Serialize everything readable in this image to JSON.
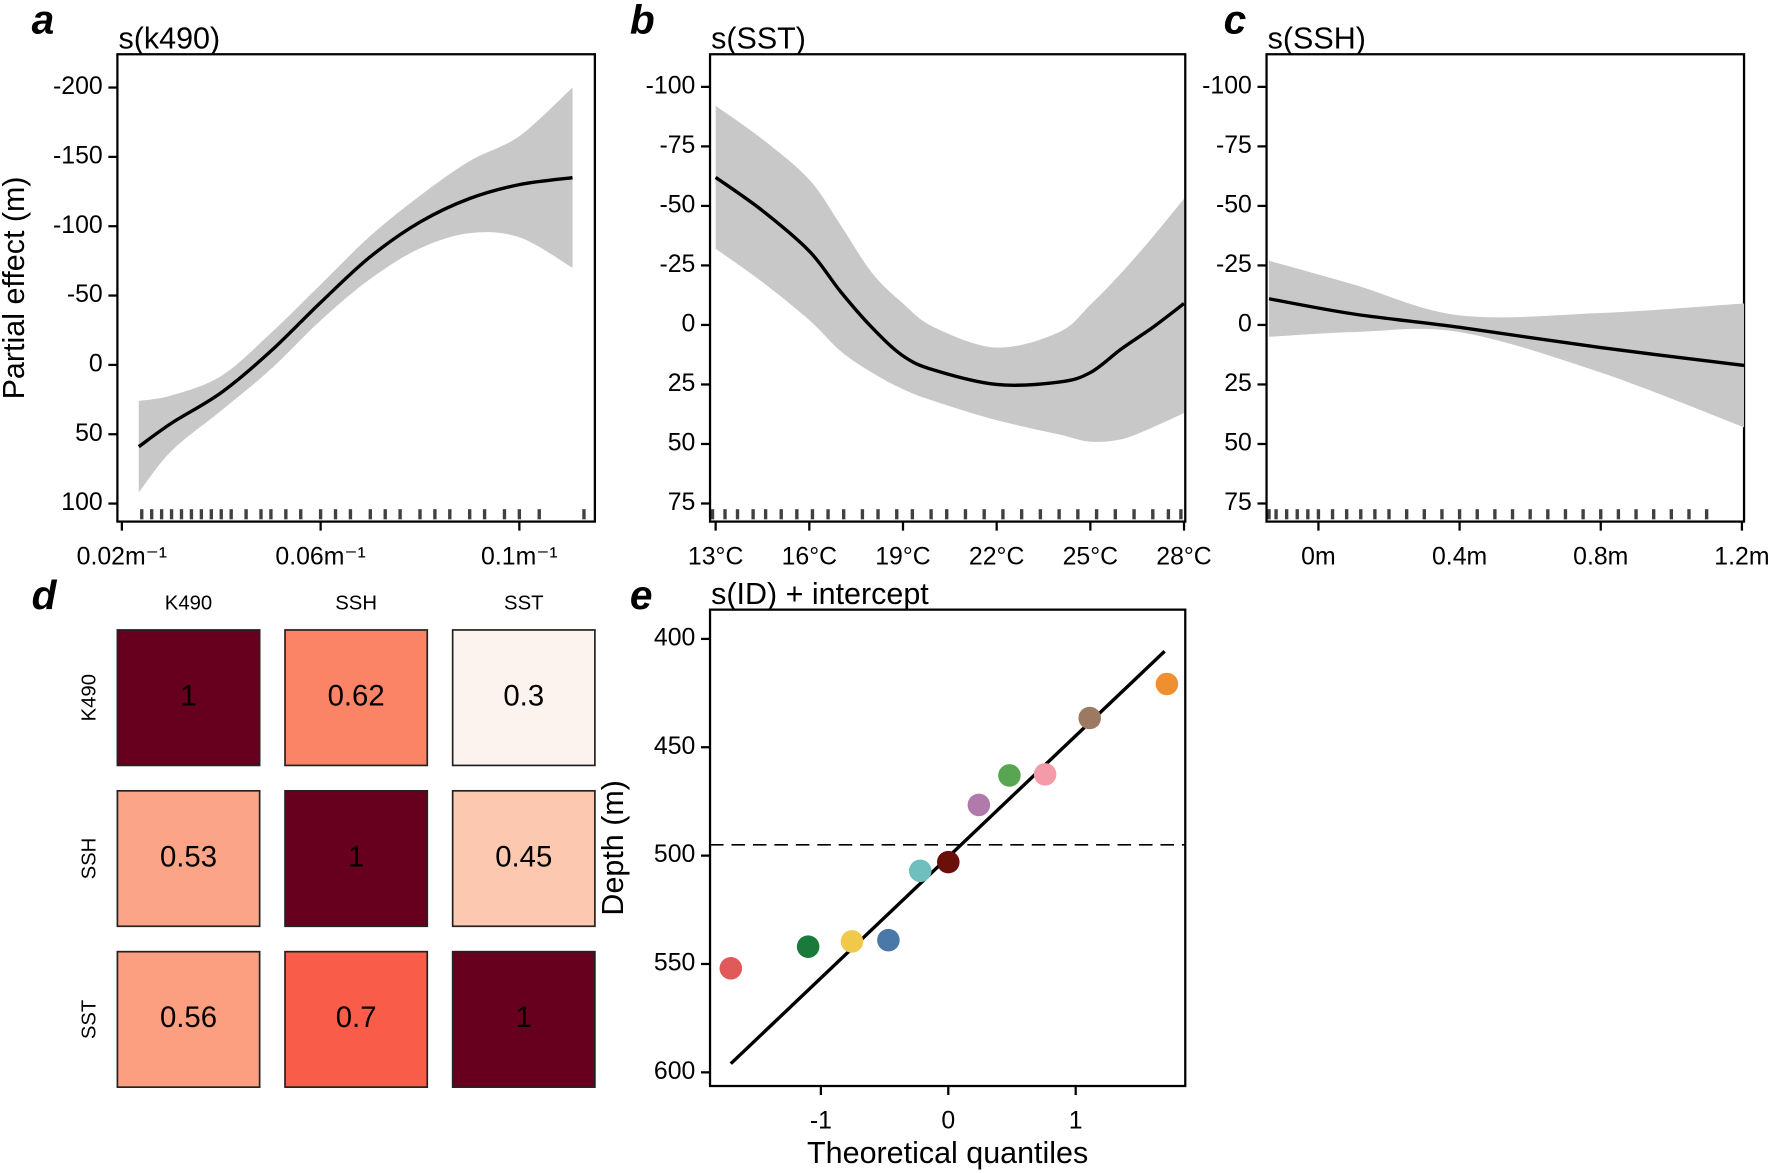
{
  "chart_data": [
    {
      "type": "line",
      "panel": "a",
      "title": "s(k490)",
      "ylabel": "Partial effect (m)",
      "x": [
        0.0234,
        0.03,
        0.04,
        0.05,
        0.06,
        0.07,
        0.08,
        0.09,
        0.1,
        0.1107
      ],
      "values": [
        59,
        42,
        20,
        -10,
        -45,
        -78,
        -103,
        -120,
        -130,
        -135
      ],
      "band_low": [
        26,
        22,
        8,
        -23,
        -58,
        -93,
        -122,
        -147,
        -165,
        -200
      ],
      "band_high": [
        92,
        62,
        33,
        3,
        -32,
        -62,
        -84,
        -95,
        -92,
        -70
      ],
      "rug": [
        0.024,
        0.026,
        0.028,
        0.03,
        0.032,
        0.034,
        0.036,
        0.038,
        0.04,
        0.042,
        0.045,
        0.048,
        0.05,
        0.053,
        0.056,
        0.06,
        0.063,
        0.066,
        0.07,
        0.073,
        0.076,
        0.08,
        0.083,
        0.086,
        0.09,
        0.093,
        0.097,
        0.1,
        0.104,
        0.113
      ],
      "color": "#000000",
      "band_color": "#c8c8c8",
      "xlim": [
        0.0191,
        0.1152
      ],
      "ylim": [
        113,
        -224
      ],
      "xticks": [
        {
          "value": 0.02,
          "label": "0.02m⁻¹"
        },
        {
          "value": 0.06,
          "label": "0.06m⁻¹"
        },
        {
          "value": 0.1,
          "label": "0.1m⁻¹"
        }
      ],
      "yticks": [
        -200,
        -150,
        -100,
        -50,
        0,
        50,
        100
      ]
    },
    {
      "type": "line",
      "panel": "b",
      "title": "s(SST)",
      "x": [
        13,
        14.5,
        16,
        17,
        18,
        19,
        20,
        22,
        24,
        25,
        26,
        27,
        28
      ],
      "values": [
        -62,
        -48,
        -31,
        -14,
        1,
        13,
        19,
        25,
        24,
        20,
        10,
        1,
        -9
      ],
      "band_low": [
        -92,
        -78,
        -61,
        -42,
        -22,
        -9,
        1,
        9.5,
        3,
        -8.5,
        -22,
        -37,
        -53
      ],
      "band_high": [
        -32,
        -18,
        -2,
        11,
        20,
        27,
        32,
        40,
        46,
        49,
        48,
        43,
        37
      ],
      "rug": [
        12.9,
        13.3,
        13.7,
        14.2,
        14.6,
        15.1,
        15.6,
        16.1,
        16.6,
        17.1,
        17.7,
        18.2,
        18.8,
        19.3,
        19.9,
        20.4,
        21,
        21.6,
        22.2,
        22.8,
        23.4,
        24,
        24.6,
        25.2,
        25.8,
        26.4,
        27,
        27.5,
        27.9
      ],
      "color": "#000000",
      "band_color": "#c8c8c8",
      "xlim": [
        12.82,
        28.04
      ],
      "ylim": [
        82.6,
        -113.7
      ],
      "xticks": [
        {
          "value": 13,
          "label": "13°C"
        },
        {
          "value": 16,
          "label": "16°C"
        },
        {
          "value": 19,
          "label": "19°C"
        },
        {
          "value": 22,
          "label": "22°C"
        },
        {
          "value": 25,
          "label": "25°C"
        },
        {
          "value": 28,
          "label": "28°C"
        }
      ],
      "yticks": [
        -100,
        -75,
        -50,
        -25,
        0,
        25,
        50,
        75
      ]
    },
    {
      "type": "line",
      "panel": "c",
      "title": "s(SSH)",
      "x": [
        -0.14,
        0.1,
        0.4,
        0.8,
        1.206
      ],
      "values": [
        -11,
        -4.6,
        1,
        9.5,
        17
      ],
      "band_low": [
        -27,
        -17,
        -4,
        -5,
        -9
      ],
      "band_high": [
        5,
        3,
        3,
        20,
        43
      ],
      "rug": [
        -0.14,
        -0.12,
        -0.09,
        -0.06,
        -0.03,
        0,
        0.04,
        0.08,
        0.12,
        0.16,
        0.2,
        0.25,
        0.3,
        0.35,
        0.4,
        0.45,
        0.5,
        0.55,
        0.6,
        0.65,
        0.7,
        0.75,
        0.8,
        0.85,
        0.9,
        0.95,
        1.0,
        1.05,
        1.1
      ],
      "color": "#000000",
      "band_color": "#c8c8c8",
      "xlim": [
        -0.147,
        1.206
      ],
      "ylim": [
        82.6,
        -113.7
      ],
      "xticks": [
        {
          "value": 0,
          "label": "0m"
        },
        {
          "value": 0.4,
          "label": "0.4m"
        },
        {
          "value": 0.8,
          "label": "0.8m"
        },
        {
          "value": 1.2,
          "label": "1.2m"
        }
      ],
      "yticks": [
        -100,
        -75,
        -50,
        -25,
        0,
        25,
        50,
        75
      ]
    },
    {
      "type": "heatmap",
      "panel": "d",
      "columns": [
        "K490",
        "SSH",
        "SST"
      ],
      "rows": [
        "K490",
        "SSH",
        "SST"
      ],
      "values": [
        [
          1,
          0.62,
          0.3
        ],
        [
          0.53,
          1,
          0.45
        ],
        [
          0.56,
          0.7,
          1
        ]
      ],
      "colors": [
        [
          "#67001f",
          "#fb8466",
          "#fdf3ee"
        ],
        [
          "#fca487",
          "#67001f",
          "#fcc8b0"
        ],
        [
          "#fc9e80",
          "#f95d4a",
          "#67001f"
        ]
      ]
    },
    {
      "type": "scatter",
      "panel": "e",
      "title": "s(ID) + intercept",
      "xlabel": "Theoretical quantiles",
      "ylabel": "Depth (m)",
      "x": [
        -1.707,
        -1.1,
        -0.756,
        -0.47,
        -0.22,
        0,
        0.24,
        0.48,
        0.76,
        1.11,
        1.716
      ],
      "values": [
        552,
        542,
        539.6,
        539,
        507,
        503,
        476.6,
        463,
        462.5,
        436.5,
        420.8
      ],
      "colors": [
        "#e05a5a",
        "#1a7a3a",
        "#f0c84a",
        "#4a78a8",
        "#6fbfbf",
        "#6b0f0a",
        "#b07aaa",
        "#58a552",
        "#f59aa8",
        "#9c7a62",
        "#ef8f30"
      ],
      "line": {
        "x": [
          -1.707,
          1.698
        ],
        "y": [
          596,
          405.7
        ]
      },
      "hline": 495,
      "xlim": [
        -1.87,
        1.86
      ],
      "ylim": [
        606.3,
        386.5
      ],
      "xticks": [
        -1,
        0,
        1
      ],
      "yticks": [
        400,
        450,
        500,
        550,
        600
      ]
    }
  ]
}
